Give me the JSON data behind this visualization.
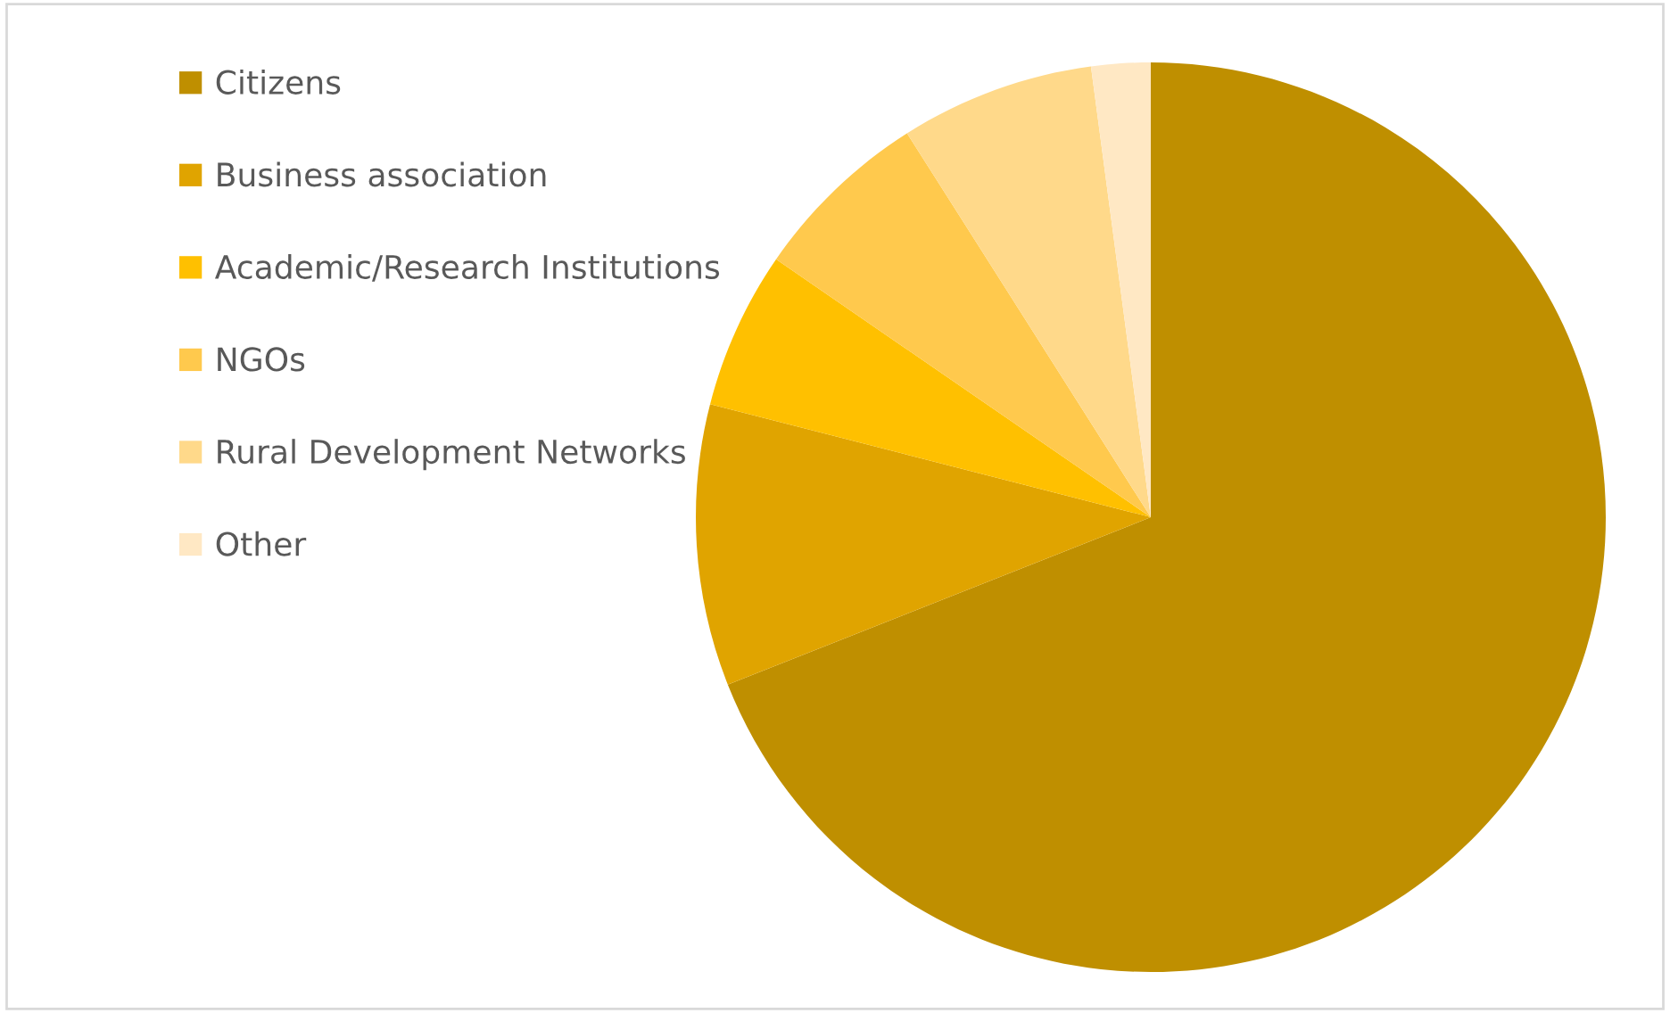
{
  "chart_data": {
    "type": "pie",
    "categories": [
      "Citizens",
      "Business association",
      "Academic/Research Institutions",
      "NGOs",
      "Rural Development Networks",
      "Other"
    ],
    "values": [
      69,
      10,
      5.6,
      6.4,
      6.9,
      2.1
    ],
    "colors": [
      "#bf8f00",
      "#e0a400",
      "#ffc000",
      "#ffc94d",
      "#ffd98a",
      "#ffe8c4"
    ],
    "legend": "left"
  }
}
